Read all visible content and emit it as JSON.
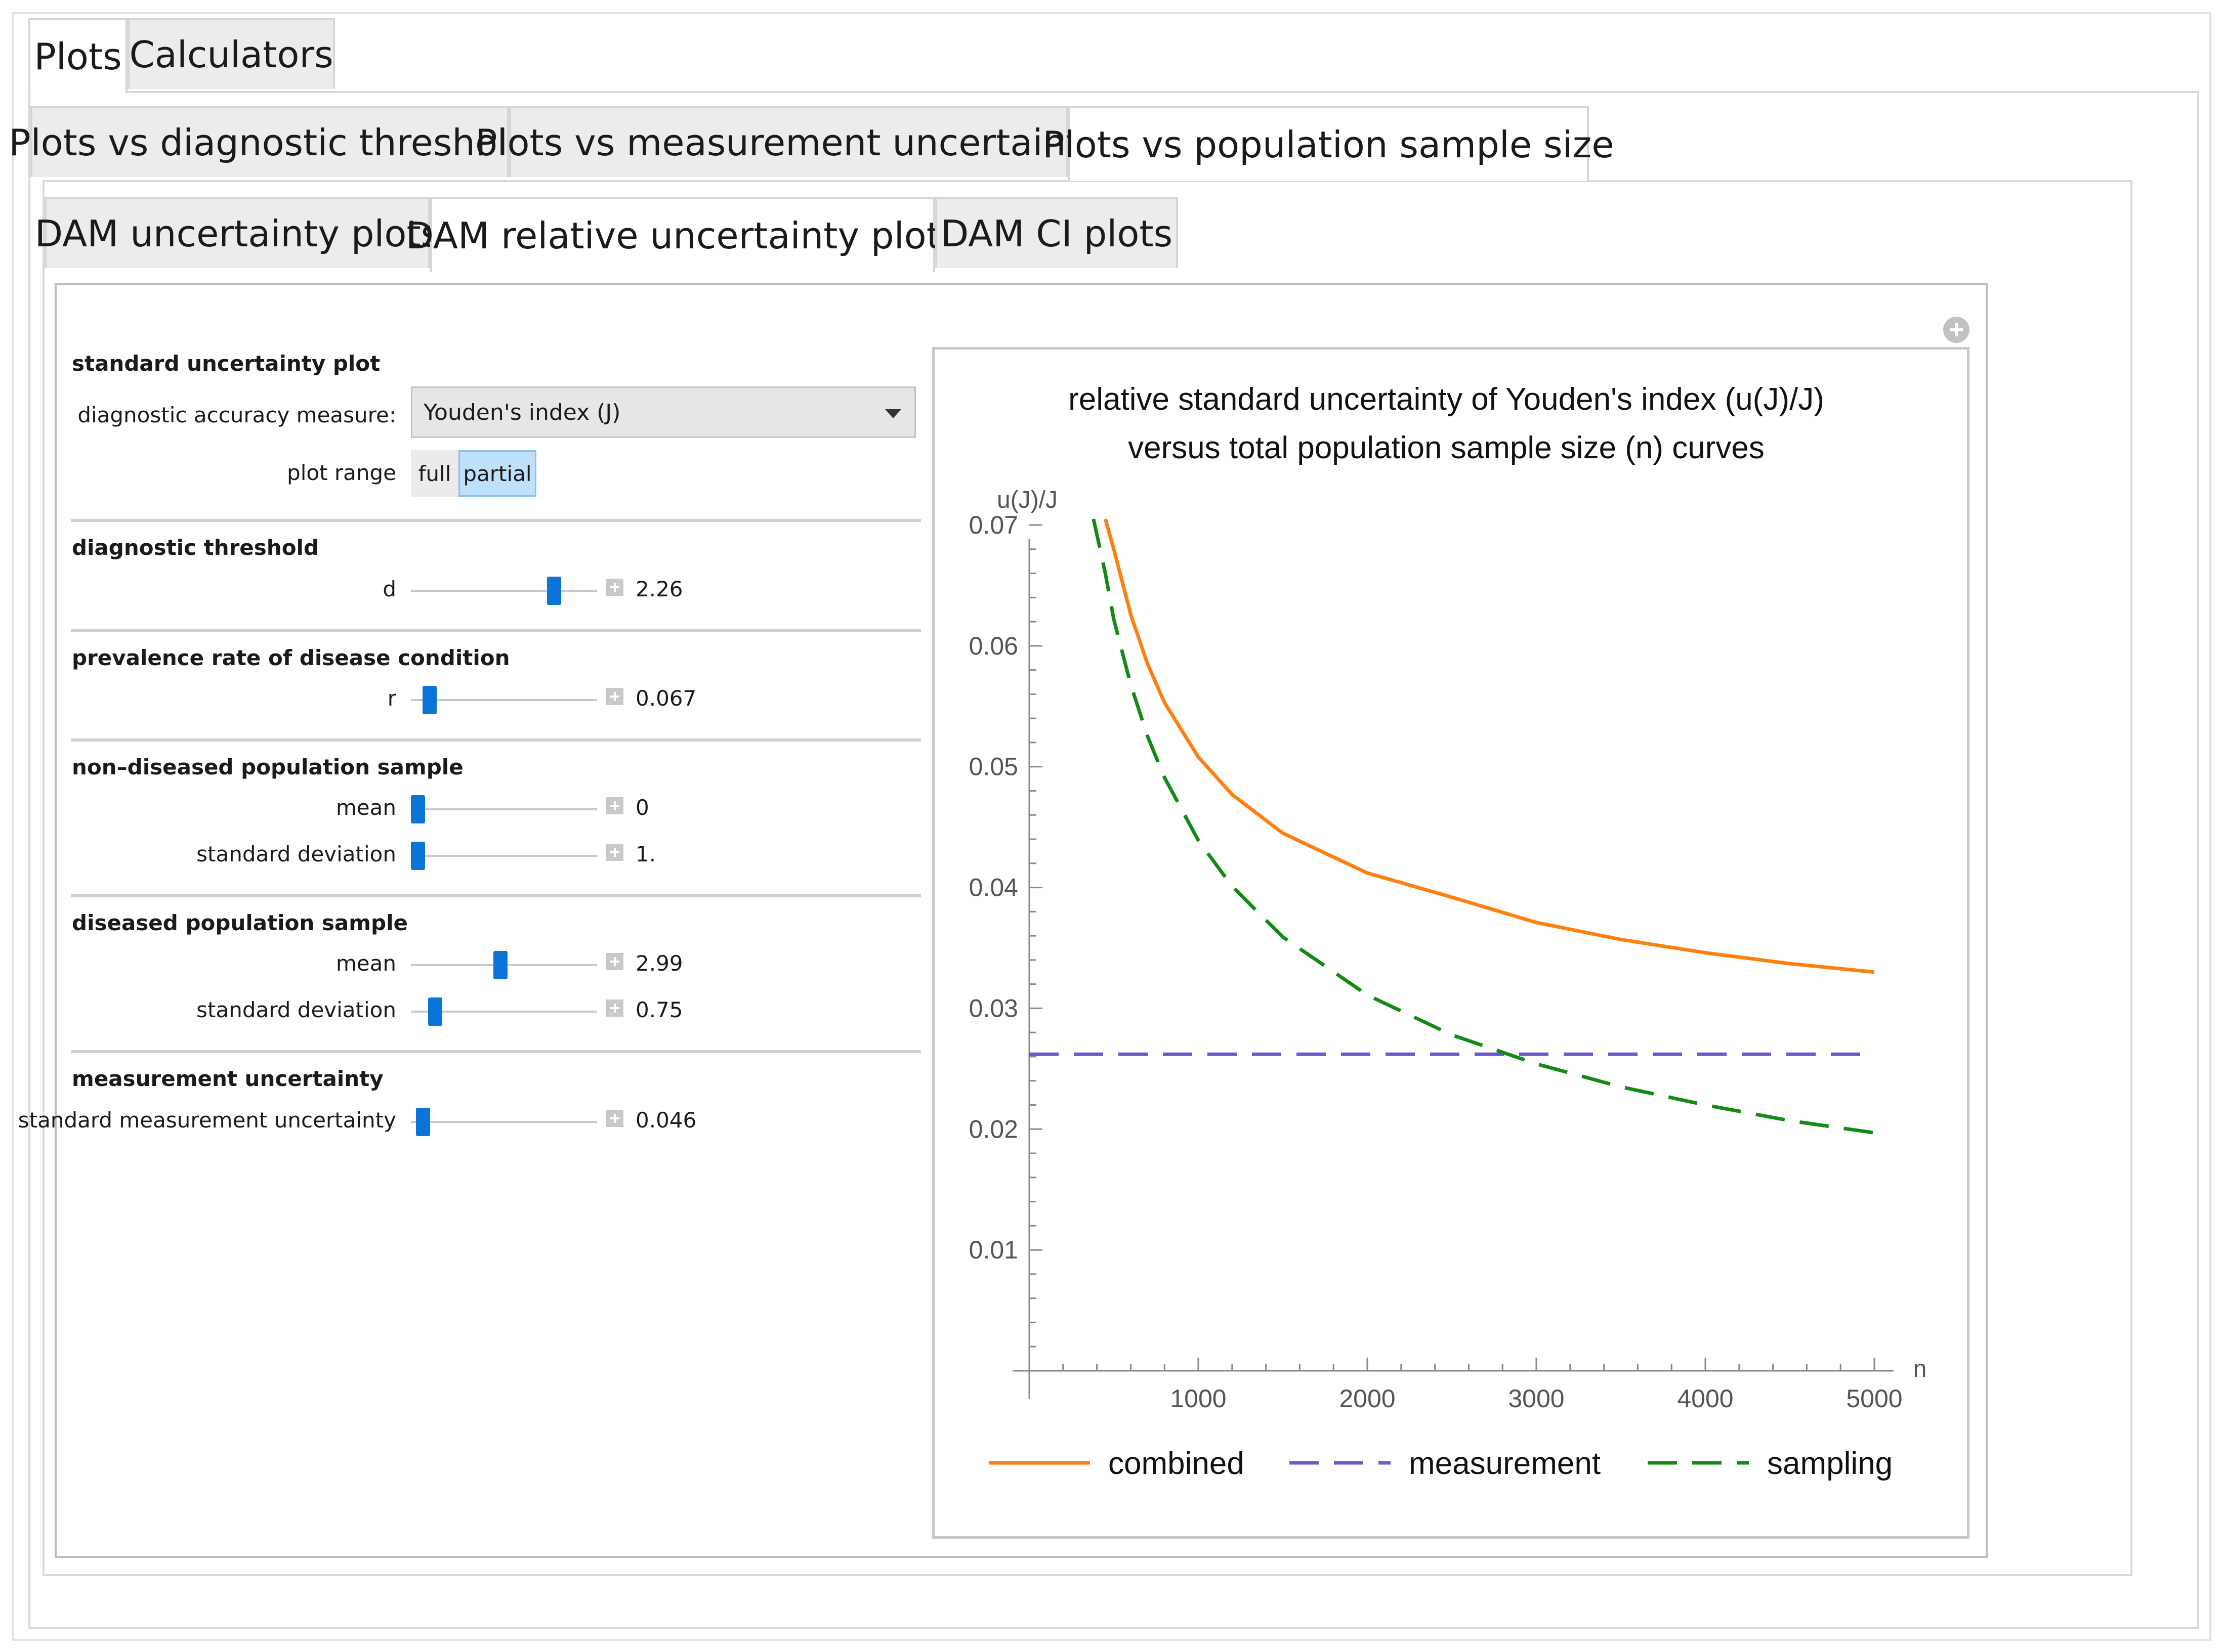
{
  "tabs_level1": [
    {
      "label": "Plots",
      "active": true
    },
    {
      "label": "Calculators",
      "active": false
    }
  ],
  "tabs_level2": [
    {
      "label": "Plots vs diagnostic threshold",
      "active": false
    },
    {
      "label": "Plots vs measurement uncertainty",
      "active": false
    },
    {
      "label": "Plots vs population sample size",
      "active": true
    }
  ],
  "tabs_level3": [
    {
      "label": "DAM uncertainty plots",
      "active": false
    },
    {
      "label": "DAM relative uncertainty plots",
      "active": true
    },
    {
      "label": "DAM CI plots",
      "active": false
    }
  ],
  "controls": {
    "plot_section_title": "standard uncertainty plot",
    "dam_label": "diagnostic accuracy measure:",
    "dam_selected": "Youden's index (J)",
    "range_label": "plot range",
    "range_options": [
      "full",
      "partial"
    ],
    "range_selected": "partial",
    "threshold": {
      "title": "diagnostic threshold",
      "label": "d",
      "value": "2.26",
      "fraction": 0.79
    },
    "prevalence": {
      "title": "prevalence rate of disease condition",
      "label": "r",
      "value": "0.067",
      "fraction": 0.067
    },
    "nondiseased": {
      "title": "non–diseased population sample",
      "mean": {
        "label": "mean",
        "value": "0",
        "fraction": 0.0
      },
      "sd": {
        "label": "standard deviation",
        "value": "1.",
        "fraction": 0.0
      }
    },
    "diseased": {
      "title": "diseased population sample",
      "mean": {
        "label": "mean",
        "value": "2.99",
        "fraction": 0.48
      },
      "sd": {
        "label": "standard deviation",
        "value": "0.75",
        "fraction": 0.1
      }
    },
    "measurement": {
      "title": "measurement uncertainty",
      "label": "standard measurement uncertainty",
      "value": "0.046",
      "fraction": 0.03
    }
  },
  "chart_data": {
    "type": "line",
    "title_line1": "relative standard uncertainty of Youden's index (u(J)/J)",
    "title_line2": "versus total population sample size (n) curves",
    "xlabel": "n",
    "ylabel": "u(J)/J",
    "xlim": [
      0,
      5000
    ],
    "ylim": [
      0,
      0.07
    ],
    "xticks": [
      1000,
      2000,
      3000,
      4000,
      5000
    ],
    "yticks": [
      0.01,
      0.02,
      0.03,
      0.04,
      0.05,
      0.06,
      0.07
    ],
    "legend_position": "bottom",
    "series": [
      {
        "name": "combined",
        "color": "#ff7f0e",
        "dash": "solid",
        "x": [
          450,
          500,
          600,
          700,
          800,
          1000,
          1200,
          1500,
          2000,
          2500,
          3000,
          3500,
          4000,
          4500,
          5000
        ],
        "y": [
          0.0705,
          0.068,
          0.0626,
          0.0585,
          0.0553,
          0.0508,
          0.0477,
          0.0445,
          0.0412,
          0.0392,
          0.0371,
          0.0357,
          0.0346,
          0.0337,
          0.033
        ]
      },
      {
        "name": "measurement",
        "color": "#6a5acd",
        "dash": "dashed",
        "x": [
          0,
          5000
        ],
        "y": [
          0.0262,
          0.0262
        ]
      },
      {
        "name": "sampling",
        "color": "#138a13",
        "dash": "dashed",
        "x": [
          380,
          450,
          500,
          600,
          700,
          800,
          1000,
          1200,
          1500,
          2000,
          2500,
          3000,
          3500,
          4000,
          4500,
          5000
        ],
        "y": [
          0.0705,
          0.066,
          0.0622,
          0.0568,
          0.0525,
          0.0491,
          0.0439,
          0.0401,
          0.0359,
          0.0311,
          0.0278,
          0.0254,
          0.0235,
          0.022,
          0.0207,
          0.0197
        ]
      }
    ]
  }
}
